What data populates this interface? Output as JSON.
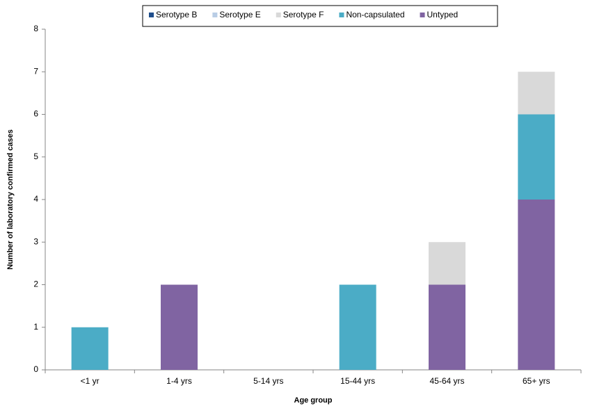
{
  "chart_data": {
    "type": "stacked-bar",
    "x_label": "Age group",
    "y_label": "Number of laboratory confirmed cases",
    "categories": [
      "<1 yr",
      "1-4 yrs",
      "5-14 yrs",
      "15-44 yrs",
      "45-64 yrs",
      "65+ yrs"
    ],
    "series": [
      {
        "name": "Serotype B",
        "color": "#1f4e8c",
        "values": [
          0,
          0,
          0,
          0,
          0,
          0
        ]
      },
      {
        "name": "Serotype E",
        "color": "#b9cde5",
        "values": [
          0,
          0,
          0,
          0,
          0,
          0
        ]
      },
      {
        "name": "Serotype F",
        "color": "#d9d9d9",
        "values": [
          0,
          0,
          0,
          0,
          1,
          1
        ]
      },
      {
        "name": "Non-capsulated",
        "color": "#4bacc6",
        "values": [
          1,
          0,
          0,
          2,
          0,
          2
        ]
      },
      {
        "name": "Untyped",
        "color": "#8064a2",
        "values": [
          0,
          2,
          0,
          0,
          2,
          4
        ]
      }
    ],
    "ylim": [
      0,
      8
    ],
    "yticks": [
      0,
      1,
      2,
      3,
      4,
      5,
      6,
      7,
      8
    ],
    "grid": false,
    "legend": "top"
  }
}
